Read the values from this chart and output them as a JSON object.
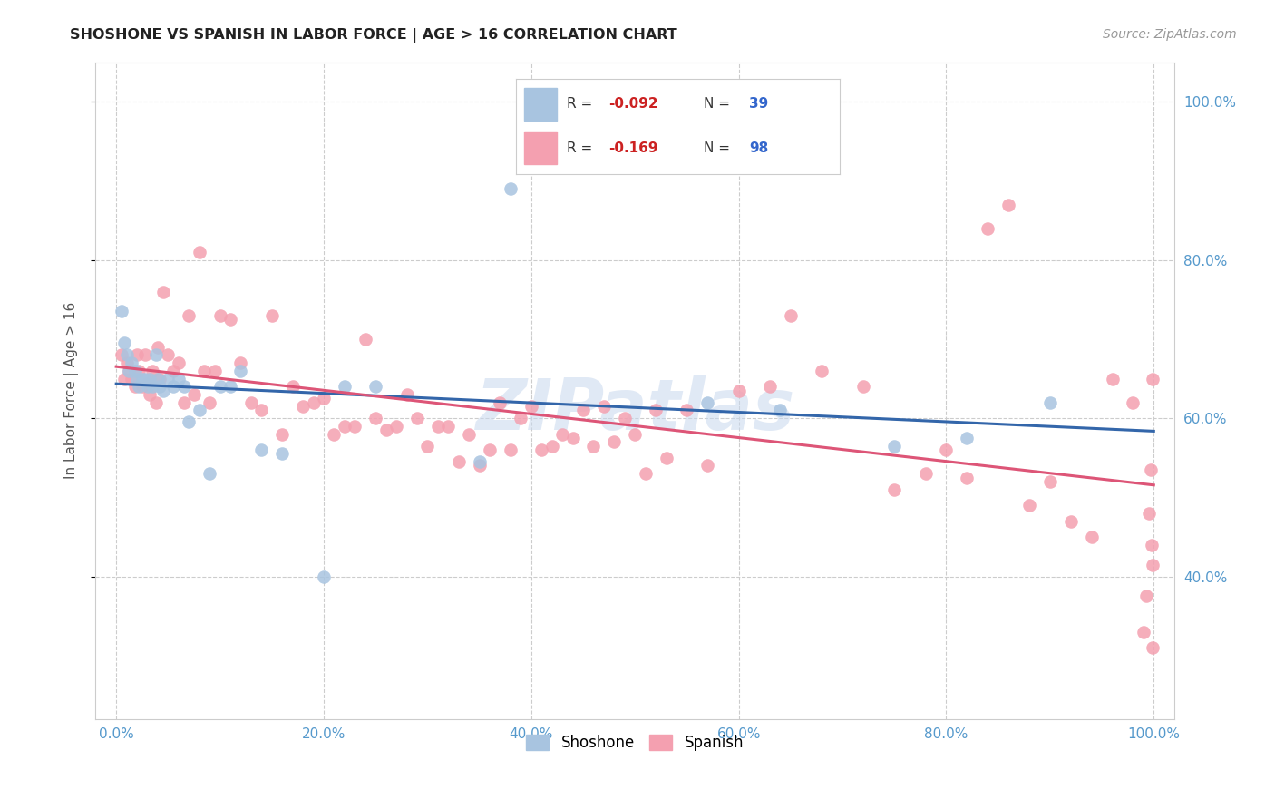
{
  "title": "SHOSHONE VS SPANISH IN LABOR FORCE | AGE > 16 CORRELATION CHART",
  "source": "Source: ZipAtlas.com",
  "ylabel": "In Labor Force | Age > 16",
  "watermark": "ZIPatlas",
  "shoshone_R": -0.092,
  "shoshone_N": 39,
  "spanish_R": -0.169,
  "spanish_N": 98,
  "shoshone_color": "#a8c4e0",
  "spanish_color": "#f4a0b0",
  "shoshone_line_color": "#3366aa",
  "spanish_line_color": "#dd5577",
  "background_color": "#ffffff",
  "grid_color": "#cccccc",
  "xlim": [
    -0.02,
    1.02
  ],
  "ylim": [
    0.22,
    1.05
  ],
  "xticks": [
    0.0,
    0.2,
    0.4,
    0.6,
    0.8,
    1.0
  ],
  "yticks": [
    0.4,
    0.6,
    0.8,
    1.0
  ],
  "xticklabels": [
    "0.0%",
    "20.0%",
    "40.0%",
    "60.0%",
    "80.0%",
    "100.0%"
  ],
  "right_yticklabels": [
    "40.0%",
    "60.0%",
    "80.0%",
    "100.0%"
  ],
  "shoshone_x": [
    0.005,
    0.008,
    0.01,
    0.012,
    0.015,
    0.018,
    0.02,
    0.022,
    0.025,
    0.028,
    0.03,
    0.032,
    0.035,
    0.038,
    0.04,
    0.042,
    0.045,
    0.05,
    0.055,
    0.06,
    0.065,
    0.07,
    0.08,
    0.09,
    0.1,
    0.11,
    0.12,
    0.14,
    0.16,
    0.2,
    0.22,
    0.25,
    0.35,
    0.38,
    0.57,
    0.64,
    0.75,
    0.82,
    0.9
  ],
  "shoshone_y": [
    0.735,
    0.695,
    0.68,
    0.66,
    0.67,
    0.66,
    0.65,
    0.64,
    0.65,
    0.65,
    0.64,
    0.65,
    0.64,
    0.68,
    0.65,
    0.64,
    0.635,
    0.65,
    0.64,
    0.65,
    0.64,
    0.595,
    0.61,
    0.53,
    0.64,
    0.64,
    0.66,
    0.56,
    0.555,
    0.4,
    0.64,
    0.64,
    0.545,
    0.89,
    0.62,
    0.61,
    0.565,
    0.575,
    0.62
  ],
  "spanish_x": [
    0.005,
    0.008,
    0.01,
    0.012,
    0.015,
    0.018,
    0.02,
    0.022,
    0.025,
    0.028,
    0.03,
    0.032,
    0.035,
    0.038,
    0.04,
    0.042,
    0.045,
    0.05,
    0.055,
    0.06,
    0.065,
    0.07,
    0.075,
    0.08,
    0.085,
    0.09,
    0.095,
    0.1,
    0.11,
    0.12,
    0.13,
    0.14,
    0.15,
    0.16,
    0.17,
    0.18,
    0.19,
    0.2,
    0.21,
    0.22,
    0.23,
    0.24,
    0.25,
    0.26,
    0.27,
    0.28,
    0.29,
    0.3,
    0.31,
    0.32,
    0.33,
    0.34,
    0.35,
    0.36,
    0.37,
    0.38,
    0.39,
    0.4,
    0.41,
    0.42,
    0.43,
    0.44,
    0.45,
    0.46,
    0.47,
    0.48,
    0.49,
    0.5,
    0.51,
    0.52,
    0.53,
    0.55,
    0.57,
    0.6,
    0.63,
    0.65,
    0.68,
    0.72,
    0.75,
    0.78,
    0.8,
    0.82,
    0.84,
    0.86,
    0.88,
    0.9,
    0.92,
    0.94,
    0.96,
    0.98,
    0.99,
    0.993,
    0.995,
    0.997,
    0.998,
    0.999,
    0.999,
    0.999
  ],
  "spanish_y": [
    0.68,
    0.65,
    0.67,
    0.66,
    0.65,
    0.64,
    0.68,
    0.66,
    0.64,
    0.68,
    0.645,
    0.63,
    0.66,
    0.62,
    0.69,
    0.65,
    0.76,
    0.68,
    0.66,
    0.67,
    0.62,
    0.73,
    0.63,
    0.81,
    0.66,
    0.62,
    0.66,
    0.73,
    0.725,
    0.67,
    0.62,
    0.61,
    0.73,
    0.58,
    0.64,
    0.615,
    0.62,
    0.625,
    0.58,
    0.59,
    0.59,
    0.7,
    0.6,
    0.585,
    0.59,
    0.63,
    0.6,
    0.565,
    0.59,
    0.59,
    0.545,
    0.58,
    0.54,
    0.56,
    0.62,
    0.56,
    0.6,
    0.615,
    0.56,
    0.565,
    0.58,
    0.575,
    0.61,
    0.565,
    0.615,
    0.57,
    0.6,
    0.58,
    0.53,
    0.61,
    0.55,
    0.61,
    0.54,
    0.635,
    0.64,
    0.73,
    0.66,
    0.64,
    0.51,
    0.53,
    0.56,
    0.525,
    0.84,
    0.87,
    0.49,
    0.52,
    0.47,
    0.45,
    0.65,
    0.62,
    0.33,
    0.375,
    0.48,
    0.535,
    0.44,
    0.415,
    0.31,
    0.65
  ]
}
